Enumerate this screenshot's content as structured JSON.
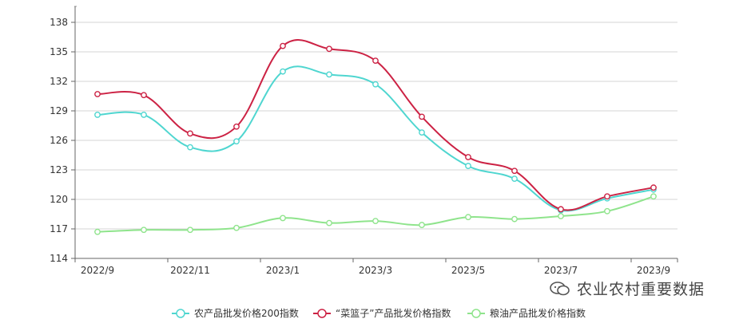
{
  "chart_data": {
    "type": "line",
    "categories": [
      "2022/9",
      "2022/10",
      "2022/11",
      "2022/12",
      "2023/1",
      "2023/2",
      "2023/3",
      "2023/4",
      "2023/5",
      "2023/6",
      "2023/7",
      "2023/8",
      "2023/9"
    ],
    "x_tick_labels": [
      "2022/9",
      "2022/11",
      "2023/1",
      "2023/3",
      "2023/5",
      "2023/7",
      "2023/9"
    ],
    "y_ticks": [
      114,
      117,
      120,
      123,
      126,
      129,
      132,
      135,
      138
    ],
    "ylim": [
      114,
      138
    ],
    "grid": true,
    "legend_position": "bottom",
    "series": [
      {
        "name": "农产品批发价格200指数",
        "color": "#4fd6d0",
        "values": [
          128.6,
          128.6,
          125.3,
          125.9,
          133.0,
          132.7,
          131.7,
          126.8,
          123.4,
          122.1,
          118.9,
          120.1,
          121.0
        ]
      },
      {
        "name": "“菜篮子”产品批发价格指数",
        "color": "#cc2244",
        "values": [
          130.7,
          130.6,
          126.7,
          127.4,
          135.6,
          135.3,
          134.1,
          128.4,
          124.3,
          122.9,
          119.0,
          120.3,
          121.2
        ]
      },
      {
        "name": "粮油产品批发价格指数",
        "color": "#8fe48c",
        "values": [
          116.7,
          116.9,
          116.9,
          117.1,
          118.1,
          117.6,
          117.8,
          117.4,
          118.2,
          118.0,
          118.3,
          118.8,
          120.3
        ]
      }
    ]
  },
  "watermark": {
    "text": "农业农村重要数据",
    "icon": "wechat-icon"
  }
}
